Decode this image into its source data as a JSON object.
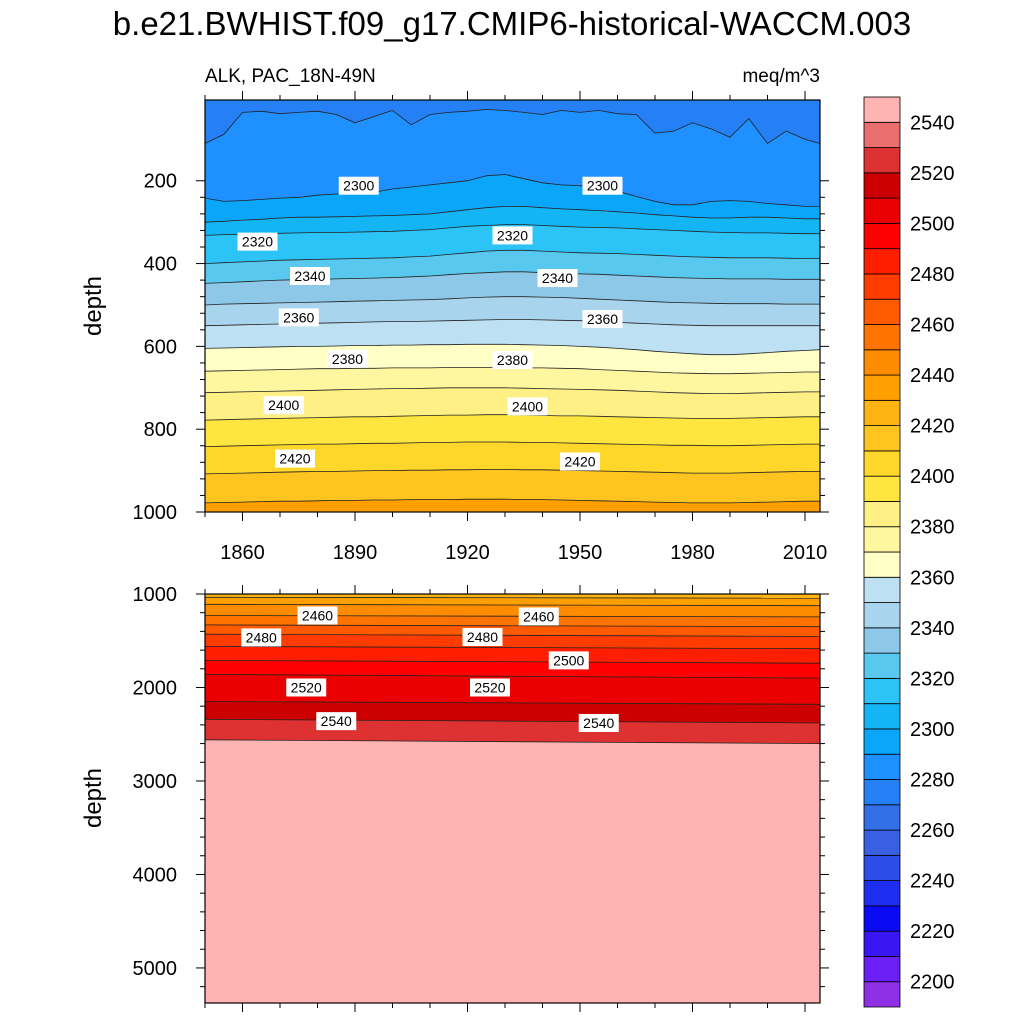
{
  "title": "b.e21.BWHIST.f09_g17.CMIP6-historical-WACCM.003",
  "subtitle_left": "ALK, PAC_18N-49N",
  "subtitle_right": "meq/m^3",
  "colors": {
    "levels": [
      2200,
      2210,
      2220,
      2230,
      2240,
      2250,
      2260,
      2270,
      2280,
      2290,
      2300,
      2310,
      2320,
      2330,
      2340,
      2350,
      2360,
      2370,
      2380,
      2390,
      2400,
      2410,
      2420,
      2430,
      2440,
      2450,
      2460,
      2470,
      2480,
      2490,
      2500,
      2510,
      2520,
      2530,
      2540,
      2550
    ],
    "fills": [
      "#8f2fe6",
      "#6b1ff5",
      "#3a16f2",
      "#0a0af5",
      "#1e2ef0",
      "#2c4de8",
      "#3a60e2",
      "#3370e8",
      "#2680f5",
      "#1e90ff",
      "#0aa6fa",
      "#14b5f5",
      "#2cc3f7",
      "#58c8ef",
      "#8ec8e8",
      "#a8d4ee",
      "#bde0f2",
      "#ffffc6",
      "#fff6a0",
      "#fff085",
      "#ffe540",
      "#ffd62a",
      "#ffc41f",
      "#ffb414",
      "#ffa000",
      "#ff8c00",
      "#ff7400",
      "#ff5a00",
      "#ff3c00",
      "#ff1e00",
      "#ff0000",
      "#ea0000",
      "#cc0000",
      "#de3232",
      "#eb6e6e",
      "#ffb4b4"
    ]
  },
  "chart_data": [
    {
      "type": "contour",
      "panel": "upper",
      "x": [
        1850,
        1855,
        1860,
        1865,
        1870,
        1875,
        1880,
        1885,
        1890,
        1895,
        1900,
        1905,
        1910,
        1915,
        1920,
        1925,
        1930,
        1935,
        1940,
        1945,
        1950,
        1955,
        1960,
        1965,
        1970,
        1975,
        1980,
        1985,
        1990,
        1995,
        2000,
        2005,
        2010,
        2014
      ],
      "xlim": [
        1850,
        2014
      ],
      "xticks": [
        1860,
        1890,
        1920,
        1950,
        1980,
        2010
      ],
      "xtick_labels": [
        "1860",
        "1890",
        "1920",
        "1950",
        "1980",
        "2010"
      ],
      "ylim": [
        5,
        1000
      ],
      "yinvert": true,
      "yticks": [
        200,
        400,
        600,
        800,
        1000
      ],
      "ytick_labels": [
        "200",
        "400",
        "600",
        "800",
        "1000"
      ],
      "ylabel": "depth",
      "contours": [
        {
          "level": 2290,
          "depth": [
            110,
            88,
            35,
            32,
            38,
            35,
            32,
            40,
            60,
            45,
            30,
            65,
            40,
            35,
            32,
            28,
            30,
            35,
            40,
            30,
            35,
            30,
            38,
            40,
            85,
            80,
            60,
            75,
            95,
            50,
            110,
            80,
            100,
            110
          ]
        },
        {
          "level": 2300,
          "depth": [
            242,
            250,
            248,
            245,
            242,
            240,
            235,
            232,
            230,
            228,
            220,
            215,
            210,
            205,
            200,
            188,
            185,
            195,
            205,
            210,
            212,
            215,
            225,
            238,
            250,
            258,
            258,
            250,
            248,
            250,
            255,
            258,
            262,
            262
          ]
        },
        {
          "level": 2310,
          "depth": [
            300,
            298,
            295,
            293,
            290,
            288,
            288,
            287,
            286,
            285,
            284,
            282,
            280,
            275,
            270,
            265,
            262,
            262,
            265,
            268,
            270,
            272,
            275,
            278,
            282,
            285,
            288,
            290,
            290,
            288,
            288,
            290,
            292,
            292
          ]
        },
        {
          "level": 2320,
          "depth": [
            332,
            330,
            329,
            328,
            327,
            326,
            325,
            325,
            324,
            323,
            322,
            320,
            318,
            314,
            310,
            308,
            306,
            306,
            308,
            310,
            312,
            313,
            314,
            316,
            318,
            320,
            322,
            324,
            325,
            326,
            326,
            327,
            328,
            328
          ]
        },
        {
          "level": 2330,
          "depth": [
            400,
            398,
            396,
            394,
            392,
            391,
            390,
            389,
            388,
            387,
            386,
            384,
            382,
            378,
            374,
            370,
            368,
            368,
            370,
            372,
            374,
            375,
            376,
            378,
            380,
            382,
            384,
            385,
            386,
            386,
            386,
            387,
            388,
            388
          ]
        },
        {
          "level": 2340,
          "depth": [
            448,
            446,
            444,
            442,
            440,
            439,
            438,
            437,
            436,
            435,
            434,
            432,
            430,
            427,
            424,
            422,
            420,
            420,
            422,
            424,
            425,
            426,
            428,
            430,
            432,
            434,
            435,
            436,
            437,
            437,
            437,
            438,
            438,
            438
          ]
        },
        {
          "level": 2350,
          "depth": [
            500,
            498,
            497,
            496,
            495,
            494,
            493,
            492,
            491,
            490,
            489,
            488,
            487,
            485,
            483,
            481,
            480,
            480,
            481,
            482,
            484,
            486,
            488,
            490,
            492,
            494,
            495,
            496,
            497,
            497,
            497,
            498,
            498,
            498
          ]
        },
        {
          "level": 2360,
          "depth": [
            550,
            549,
            548,
            547,
            546,
            545,
            544,
            543,
            542,
            541,
            540,
            540,
            539,
            538,
            537,
            536,
            535,
            535,
            536,
            537,
            538,
            540,
            542,
            544,
            546,
            548,
            549,
            550,
            550,
            550,
            550,
            550,
            550,
            550
          ]
        },
        {
          "level": 2370,
          "depth": [
            605,
            604,
            603,
            602,
            601,
            600,
            600,
            599,
            598,
            598,
            597,
            597,
            596,
            596,
            595,
            595,
            595,
            596,
            597,
            598,
            600,
            602,
            605,
            608,
            612,
            615,
            618,
            620,
            620,
            618,
            615,
            612,
            610,
            608
          ]
        },
        {
          "level": 2380,
          "depth": [
            660,
            659,
            658,
            657,
            656,
            655,
            654,
            654,
            653,
            653,
            652,
            652,
            652,
            651,
            651,
            651,
            651,
            652,
            652,
            653,
            654,
            656,
            658,
            660,
            662,
            664,
            665,
            666,
            666,
            665,
            664,
            663,
            662,
            662
          ]
        },
        {
          "level": 2390,
          "depth": [
            712,
            711,
            710,
            709,
            708,
            707,
            706,
            705,
            704,
            703,
            702,
            702,
            701,
            700,
            700,
            700,
            700,
            701,
            702,
            703,
            704,
            705,
            706,
            708,
            710,
            712,
            713,
            714,
            714,
            713,
            712,
            711,
            710,
            710
          ]
        },
        {
          "level": 2400,
          "depth": [
            778,
            777,
            776,
            775,
            774,
            773,
            772,
            771,
            770,
            770,
            769,
            768,
            767,
            766,
            766,
            765,
            765,
            766,
            767,
            768,
            768,
            769,
            770,
            771,
            772,
            773,
            774,
            774,
            774,
            773,
            772,
            771,
            770,
            770
          ]
        },
        {
          "level": 2410,
          "depth": [
            842,
            841,
            840,
            839,
            838,
            837,
            836,
            836,
            835,
            834,
            834,
            833,
            832,
            832,
            831,
            831,
            831,
            832,
            832,
            833,
            834,
            835,
            836,
            837,
            838,
            839,
            839,
            840,
            840,
            839,
            838,
            837,
            836,
            836
          ]
        },
        {
          "level": 2420,
          "depth": [
            908,
            907,
            906,
            905,
            904,
            903,
            902,
            902,
            901,
            900,
            900,
            899,
            899,
            898,
            898,
            897,
            897,
            898,
            898,
            899,
            900,
            901,
            902,
            903,
            904,
            905,
            906,
            906,
            906,
            905,
            904,
            903,
            902,
            902
          ]
        },
        {
          "level": 2430,
          "depth": [
            978,
            977,
            976,
            975,
            974,
            974,
            973,
            972,
            972,
            971,
            971,
            970,
            970,
            970,
            969,
            969,
            969,
            970,
            970,
            971,
            972,
            973,
            974,
            975,
            976,
            977,
            978,
            978,
            978,
            977,
            976,
            975,
            974,
            974
          ]
        }
      ],
      "fill_top_level": 2280,
      "fill_bottom_level": 2440,
      "labels": [
        {
          "text": "2300",
          "x": 1891,
          "depth": 212
        },
        {
          "text": "2300",
          "x": 1956,
          "depth": 212
        },
        {
          "text": "2320",
          "x": 1864,
          "depth": 347
        },
        {
          "text": "2320",
          "x": 1932,
          "depth": 332
        },
        {
          "text": "2340",
          "x": 1878,
          "depth": 430
        },
        {
          "text": "2340",
          "x": 1944,
          "depth": 435
        },
        {
          "text": "2360",
          "x": 1875,
          "depth": 530
        },
        {
          "text": "2360",
          "x": 1956,
          "depth": 534
        },
        {
          "text": "2380",
          "x": 1888,
          "depth": 630
        },
        {
          "text": "2380",
          "x": 1932,
          "depth": 633
        },
        {
          "text": "2400",
          "x": 1871,
          "depth": 742
        },
        {
          "text": "2400",
          "x": 1936,
          "depth": 745
        },
        {
          "text": "2420",
          "x": 1874,
          "depth": 871
        },
        {
          "text": "2420",
          "x": 1950,
          "depth": 878
        }
      ]
    },
    {
      "type": "contour",
      "panel": "lower",
      "x": [
        1850,
        2014
      ],
      "xlim": [
        1850,
        2014
      ],
      "xticks": [
        1860,
        1890,
        1920,
        1950,
        1980,
        2010
      ],
      "xtick_labels": [],
      "ylim": [
        1000,
        5375
      ],
      "yinvert": true,
      "yticks": [
        1000,
        2000,
        3000,
        4000,
        5000
      ],
      "ytick_labels": [
        "1000",
        "2000",
        "3000",
        "4000",
        "5000"
      ],
      "ylabel": "depth",
      "contours": [
        {
          "level": 2440,
          "depth": [
            1035,
            1045
          ]
        },
        {
          "level": 2450,
          "depth": [
            1110,
            1125
          ]
        },
        {
          "level": 2460,
          "depth": [
            1230,
            1245
          ]
        },
        {
          "level": 2470,
          "depth": [
            1330,
            1350
          ]
        },
        {
          "level": 2480,
          "depth": [
            1430,
            1455
          ]
        },
        {
          "level": 2490,
          "depth": [
            1560,
            1585
          ]
        },
        {
          "level": 2500,
          "depth": [
            1710,
            1740
          ]
        },
        {
          "level": 2510,
          "depth": [
            1860,
            1900
          ]
        },
        {
          "level": 2520,
          "depth": [
            2150,
            2180
          ]
        },
        {
          "level": 2530,
          "depth": [
            2340,
            2380
          ]
        },
        {
          "level": 2540,
          "depth": [
            2560,
            2600
          ]
        }
      ],
      "fill_top_level": 2430,
      "fill_bottom_level": 2550,
      "labels": [
        {
          "text": "2460",
          "x": 1880,
          "depth": 1230
        },
        {
          "text": "2460",
          "x": 1939,
          "depth": 1240
        },
        {
          "text": "2480",
          "x": 1865,
          "depth": 1465
        },
        {
          "text": "2480",
          "x": 1924,
          "depth": 1460
        },
        {
          "text": "2500",
          "x": 1947,
          "depth": 1710
        },
        {
          "text": "2520",
          "x": 1877,
          "depth": 2000
        },
        {
          "text": "2520",
          "x": 1926,
          "depth": 2000
        },
        {
          "text": "2540",
          "x": 1885,
          "depth": 2360
        },
        {
          "text": "2540",
          "x": 1955,
          "depth": 2380
        }
      ]
    }
  ],
  "colorbar": {
    "tick_levels": [
      2200,
      2220,
      2240,
      2260,
      2280,
      2300,
      2320,
      2340,
      2360,
      2380,
      2400,
      2420,
      2440,
      2460,
      2480,
      2500,
      2520,
      2540
    ],
    "tick_labels": [
      "2200",
      "2220",
      "2240",
      "2260",
      "2280",
      "2300",
      "2320",
      "2340",
      "2360",
      "2380",
      "2400",
      "2420",
      "2440",
      "2460",
      "2480",
      "2500",
      "2520",
      "2540"
    ]
  }
}
